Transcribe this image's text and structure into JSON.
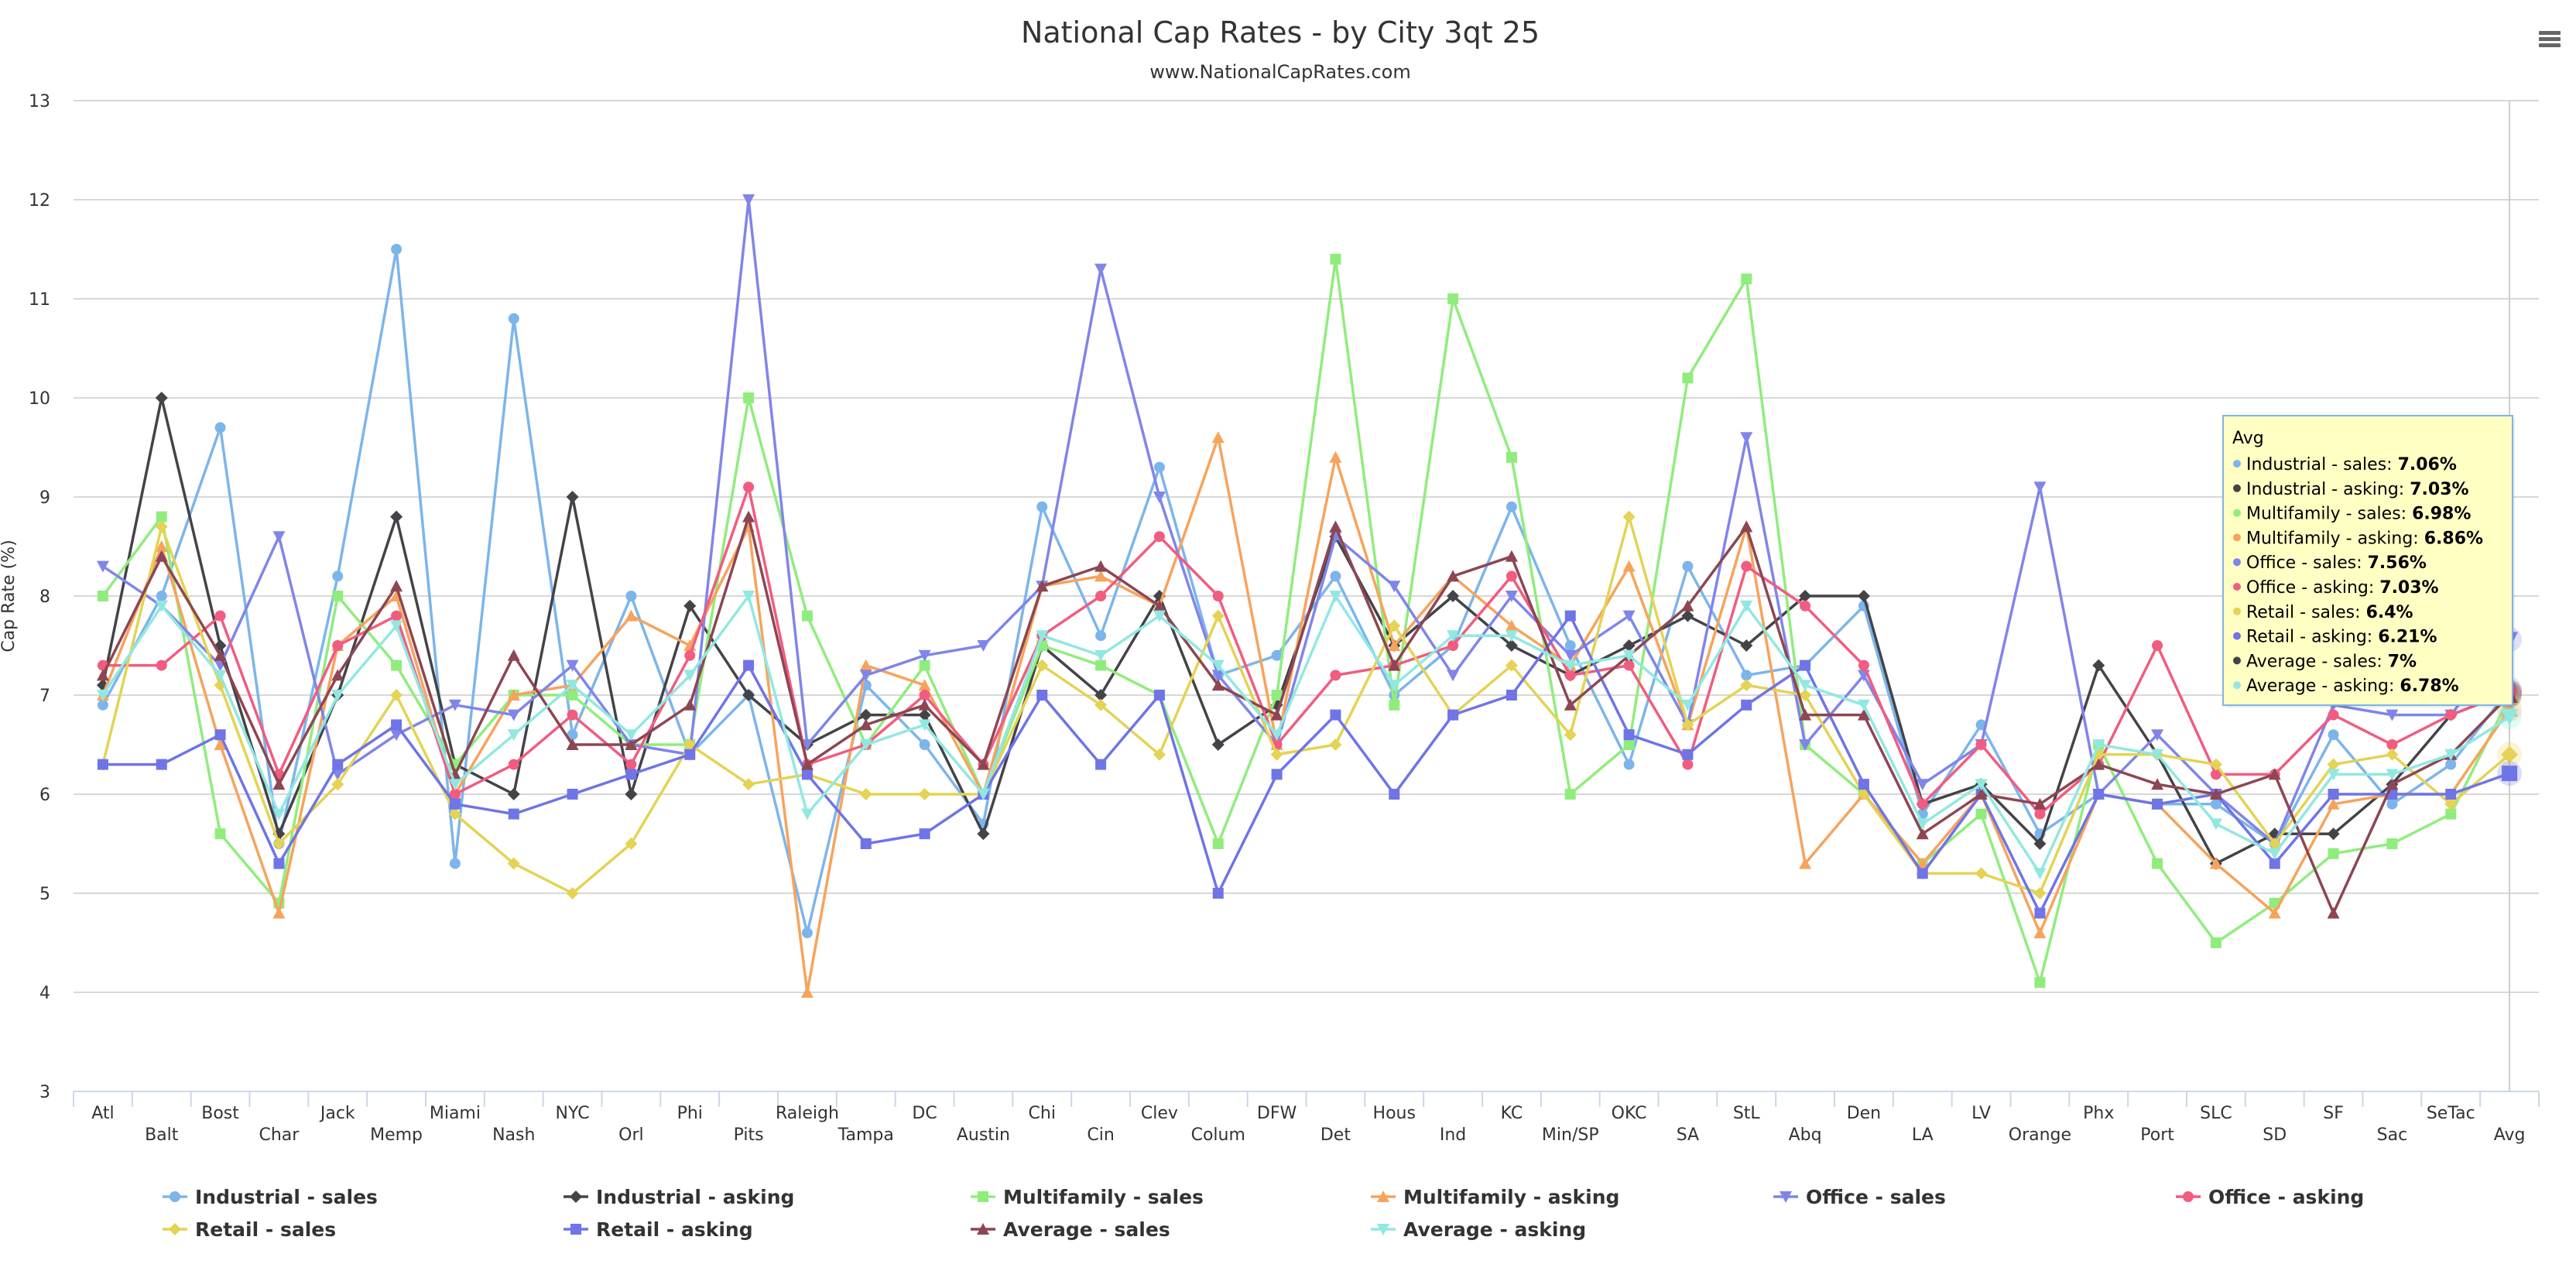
{
  "chart_data": {
    "type": "line",
    "title": "National Cap Rates - by City 3qt 25",
    "subtitle": "www.NationalCapRates.com",
    "xlabel": "",
    "ylabel": "Cap Rate (%)",
    "ylim": [
      3,
      13
    ],
    "yticks": [
      3,
      4,
      5,
      6,
      7,
      8,
      9,
      10,
      11,
      12,
      13
    ],
    "grid": true,
    "legend_position": "bottom",
    "categories": [
      "Atl",
      "Balt",
      "Bost",
      "Char",
      "Jack",
      "Memp",
      "Miami",
      "Nash",
      "NYC",
      "Orl",
      "Phi",
      "Pits",
      "Raleigh",
      "Tampa",
      "DC",
      "Austin",
      "Chi",
      "Cin",
      "Clev",
      "Colum",
      "DFW",
      "Det",
      "Hous",
      "Ind",
      "KC",
      "Min/SP",
      "OKC",
      "SA",
      "StL",
      "Abq",
      "Den",
      "LA",
      "LV",
      "Orange",
      "Phx",
      "Port",
      "SLC",
      "SD",
      "SF",
      "Sac",
      "SeTac",
      "Avg"
    ],
    "series": [
      {
        "name": "Industrial - sales",
        "color": "#7cb5ec",
        "marker": "circle",
        "values": [
          6.9,
          8.0,
          9.7,
          5.5,
          8.2,
          11.5,
          5.3,
          10.8,
          6.6,
          8.0,
          6.4,
          7.0,
          4.6,
          7.1,
          6.5,
          5.7,
          8.9,
          7.6,
          9.3,
          7.2,
          7.4,
          8.2,
          7.0,
          7.5,
          8.9,
          7.5,
          6.3,
          8.3,
          7.2,
          7.3,
          7.9,
          5.8,
          6.7,
          5.6,
          6.0,
          5.9,
          5.9,
          5.5,
          6.6,
          5.9,
          6.3,
          7.06
        ]
      },
      {
        "name": "Industrial - asking",
        "color": "#434348",
        "marker": "diamond",
        "values": [
          7.1,
          10.0,
          7.5,
          5.6,
          7.0,
          8.8,
          6.3,
          6.0,
          9.0,
          6.0,
          7.9,
          7.0,
          6.5,
          6.8,
          6.8,
          5.6,
          7.5,
          7.0,
          8.0,
          6.5,
          6.9,
          8.6,
          7.5,
          8.0,
          7.5,
          7.2,
          7.5,
          7.8,
          7.5,
          8.0,
          8.0,
          5.9,
          6.1,
          5.5,
          7.3,
          6.4,
          5.3,
          5.6,
          5.6,
          6.1,
          6.8,
          7.03
        ]
      },
      {
        "name": "Multifamily - sales",
        "color": "#90ed7d",
        "marker": "square",
        "values": [
          8.0,
          8.8,
          5.6,
          4.9,
          8.0,
          7.3,
          6.3,
          7.0,
          7.0,
          6.5,
          6.5,
          10.0,
          7.8,
          6.5,
          7.3,
          6.0,
          7.5,
          7.3,
          7.0,
          5.5,
          7.0,
          11.4,
          6.9,
          11.0,
          9.4,
          6.0,
          6.5,
          10.2,
          11.2,
          6.5,
          6.0,
          5.3,
          5.8,
          4.1,
          6.5,
          5.3,
          4.5,
          4.9,
          5.4,
          5.5,
          5.8,
          6.98
        ]
      },
      {
        "name": "Multifamily - asking",
        "color": "#f7a35c",
        "marker": "triangle",
        "values": [
          7.0,
          8.5,
          6.5,
          4.8,
          7.5,
          8.0,
          6.0,
          7.0,
          7.1,
          7.8,
          7.5,
          8.7,
          4.0,
          7.3,
          7.1,
          6.0,
          8.1,
          8.2,
          7.9,
          9.6,
          6.5,
          9.4,
          7.5,
          8.2,
          7.7,
          7.3,
          8.3,
          6.7,
          8.7,
          5.3,
          6.0,
          5.3,
          6.0,
          4.6,
          6.0,
          5.9,
          5.3,
          4.8,
          5.9,
          6.0,
          6.0,
          6.86
        ]
      },
      {
        "name": "Office - sales",
        "color": "#8085e9",
        "marker": "triangle-down",
        "values": [
          8.3,
          7.9,
          7.3,
          8.6,
          6.2,
          6.6,
          6.9,
          6.8,
          7.3,
          6.5,
          6.4,
          12.0,
          6.5,
          7.2,
          7.4,
          7.5,
          8.1,
          11.3,
          9.0,
          7.2,
          6.5,
          8.6,
          8.1,
          7.2,
          8.0,
          7.4,
          7.8,
          6.7,
          9.6,
          6.5,
          7.2,
          6.1,
          6.5,
          9.1,
          6.0,
          6.6,
          6.0,
          5.5,
          6.9,
          6.8,
          6.8,
          7.56
        ]
      },
      {
        "name": "Office - asking",
        "color": "#f15c80",
        "marker": "circle",
        "values": [
          7.3,
          7.3,
          7.8,
          6.2,
          7.5,
          7.8,
          6.0,
          6.3,
          6.8,
          6.3,
          7.4,
          9.1,
          6.3,
          6.5,
          7.0,
          6.3,
          7.6,
          8.0,
          8.6,
          8.0,
          6.5,
          7.2,
          7.3,
          7.5,
          8.2,
          7.2,
          7.3,
          6.3,
          8.3,
          7.9,
          7.3,
          5.9,
          6.5,
          5.8,
          6.3,
          7.5,
          6.2,
          6.2,
          6.8,
          6.5,
          6.8,
          7.03
        ]
      },
      {
        "name": "Retail - sales",
        "color": "#e4d354",
        "marker": "diamond",
        "values": [
          6.3,
          8.7,
          7.1,
          5.5,
          6.1,
          7.0,
          5.8,
          5.3,
          5.0,
          5.5,
          6.5,
          6.1,
          6.2,
          6.0,
          6.0,
          6.0,
          7.3,
          6.9,
          6.4,
          7.8,
          6.4,
          6.5,
          7.7,
          6.8,
          7.3,
          6.6,
          8.8,
          6.7,
          7.1,
          7.0,
          6.0,
          5.2,
          5.2,
          5.0,
          6.4,
          6.4,
          6.3,
          5.5,
          6.3,
          6.4,
          5.9,
          6.4
        ]
      },
      {
        "name": "Retail - asking",
        "color": "#6f74e6",
        "marker": "square",
        "values": [
          6.3,
          6.3,
          6.6,
          5.3,
          6.3,
          6.7,
          5.9,
          5.8,
          6.0,
          6.2,
          6.4,
          7.3,
          6.2,
          5.5,
          5.6,
          6.0,
          7.0,
          6.3,
          7.0,
          5.0,
          6.2,
          6.8,
          6.0,
          6.8,
          7.0,
          7.8,
          6.6,
          6.4,
          6.9,
          7.3,
          6.1,
          5.2,
          6.0,
          4.8,
          6.0,
          5.9,
          6.0,
          5.3,
          6.0,
          6.0,
          6.0,
          6.21
        ]
      },
      {
        "name": "Average - sales",
        "color": "#8d4653",
        "marker": "triangle",
        "values": [
          7.2,
          8.4,
          7.4,
          6.1,
          7.2,
          8.1,
          6.2,
          7.4,
          6.5,
          6.5,
          6.9,
          8.8,
          6.3,
          6.7,
          6.9,
          6.3,
          8.1,
          8.3,
          7.9,
          7.1,
          6.8,
          8.7,
          7.3,
          8.2,
          8.4,
          6.9,
          7.4,
          7.9,
          8.7,
          6.8,
          6.8,
          5.6,
          6.0,
          5.9,
          6.3,
          6.1,
          6.0,
          6.2,
          4.8,
          6.1,
          6.4,
          7.0
        ]
      },
      {
        "name": "Average - asking",
        "color": "#91e8e1",
        "marker": "triangle-down",
        "values": [
          7.0,
          7.9,
          7.2,
          5.8,
          7.0,
          7.7,
          6.1,
          6.6,
          7.1,
          6.6,
          7.2,
          8.0,
          5.8,
          6.5,
          6.7,
          6.0,
          7.6,
          7.4,
          7.8,
          7.3,
          6.6,
          8.0,
          7.1,
          7.6,
          7.6,
          7.3,
          7.4,
          6.9,
          7.9,
          7.1,
          6.9,
          5.7,
          6.1,
          5.2,
          6.5,
          6.4,
          5.7,
          5.4,
          6.2,
          6.2,
          6.4,
          6.78
        ]
      }
    ],
    "tooltip": {
      "header": "Avg",
      "rows": [
        {
          "label": "Industrial - sales: ",
          "value": "7.06%",
          "color": "#7cb5ec"
        },
        {
          "label": "Industrial - asking: ",
          "value": "7.03%",
          "color": "#434348"
        },
        {
          "label": "Multifamily - sales: ",
          "value": "6.98%",
          "color": "#90ed7d"
        },
        {
          "label": "Multifamily - asking: ",
          "value": "6.86%",
          "color": "#f7a35c"
        },
        {
          "label": "Office - sales: ",
          "value": "7.56%",
          "color": "#8085e9"
        },
        {
          "label": "Office - asking: ",
          "value": "7.03%",
          "color": "#f15c80"
        },
        {
          "label": "Retail - sales: ",
          "value": "6.4%",
          "color": "#e4d354"
        },
        {
          "label": "Retail - asking: ",
          "value": "6.21%",
          "color": "#6f74e6"
        },
        {
          "label": "Average - sales: ",
          "value": "7%",
          "color": "#434348"
        },
        {
          "label": "Average - asking: ",
          "value": "6.78%",
          "color": "#91e8e1"
        }
      ]
    }
  }
}
